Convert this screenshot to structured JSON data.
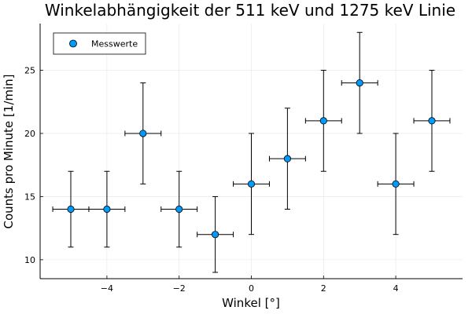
{
  "chart_data": {
    "type": "scatter",
    "title": "Winkelabhängigkeit der 511 keV und 1275 keV Linie",
    "xlabel": "Winkel [°]",
    "ylabel": "Counts pro Minute [1/min]",
    "xlim": [
      -5.85,
      5.85
    ],
    "ylim": [
      8.5,
      28.7
    ],
    "xticks": [
      -4,
      -2,
      0,
      2,
      4
    ],
    "xtick_labels": [
      "−4",
      "−2",
      "0",
      "2",
      "4"
    ],
    "yticks": [
      10,
      15,
      20,
      25
    ],
    "ytick_labels": [
      "10",
      "15",
      "20",
      "25"
    ],
    "grid": true,
    "legend_position": "top-left",
    "series": [
      {
        "name": "Messwerte",
        "color": "#009AFA",
        "x": [
          -5,
          -4,
          -3,
          -2,
          -1,
          0,
          1,
          2,
          3,
          4,
          5
        ],
        "y": [
          14,
          14,
          20,
          14,
          12,
          16,
          18,
          21,
          24,
          16,
          21
        ],
        "x_error": [
          0.5,
          0.5,
          0.5,
          0.5,
          0.5,
          0.5,
          0.5,
          0.5,
          0.5,
          0.5,
          0.5
        ],
        "y_error": [
          3,
          3,
          4,
          3,
          3,
          4,
          4,
          4,
          4,
          4,
          4
        ]
      }
    ]
  }
}
